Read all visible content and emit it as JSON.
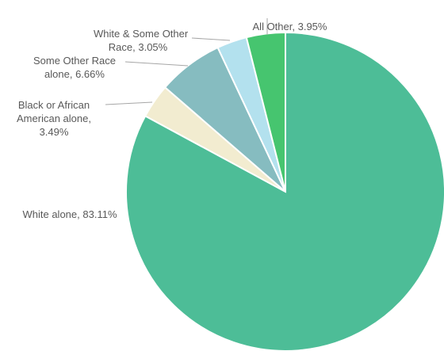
{
  "chart_data": {
    "type": "pie",
    "start_angle_deg": 0,
    "direction": "clockwise",
    "slices": [
      {
        "label": "White alone",
        "value": 83.11,
        "display": "83.11%",
        "color": "#4dbd97"
      },
      {
        "label": "Black or African American alone",
        "value": 3.49,
        "display": "3.49%",
        "color": "#f2ecd0"
      },
      {
        "label": "Some Other Race alone",
        "value": 6.66,
        "display": "6.66%",
        "color": "#86bcc0"
      },
      {
        "label": "White & Some Other Race",
        "value": 3.05,
        "display": "3.05%",
        "color": "#b3e1ee"
      },
      {
        "label": "All Other",
        "value": 3.95,
        "display": "3.95%",
        "color": "#46c56f"
      }
    ]
  }
}
